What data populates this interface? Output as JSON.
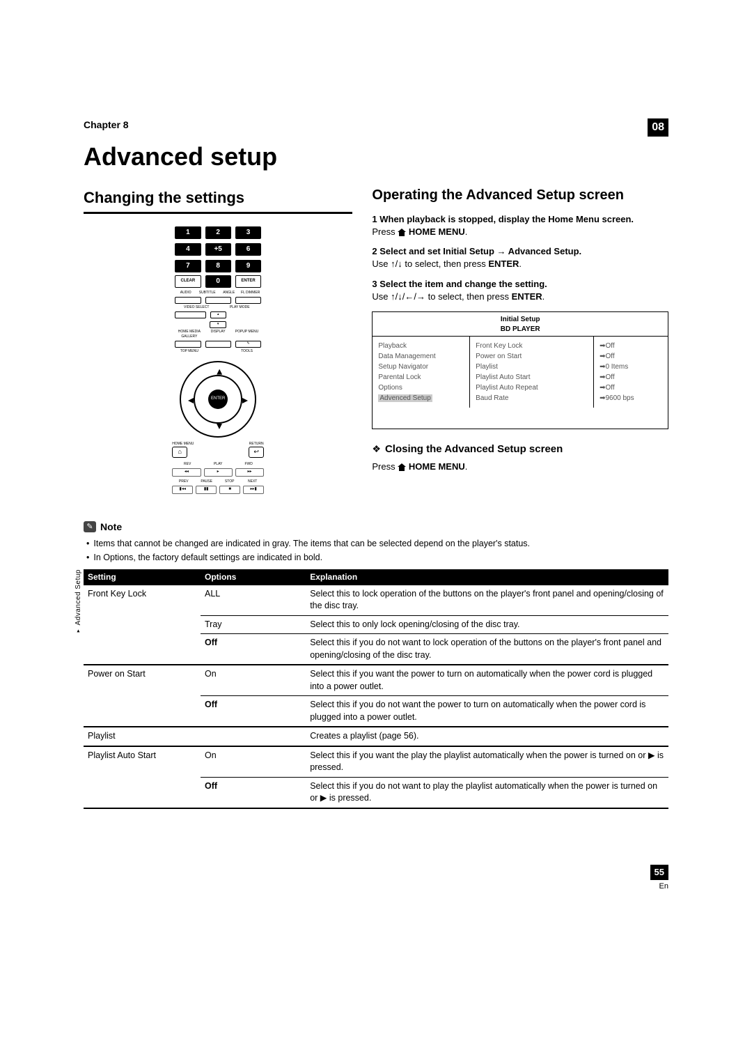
{
  "chapter": {
    "label": "Chapter 8",
    "badge": "08"
  },
  "title": "Advanced setup",
  "left_section_title": "Changing the settings",
  "right_section_title": "Operating the Advanced Setup screen",
  "remote": {
    "numpad": [
      "1",
      "2",
      "3",
      "4",
      "+5",
      "6",
      "7",
      "8",
      "9"
    ],
    "bottom_row": [
      "CLEAR",
      "0",
      "ENTER"
    ],
    "row1_labels": [
      "AUDIO",
      "SUBTITLE",
      "ANGLE",
      "FL DIMMER"
    ],
    "row2_labels": [
      "VIDEO SELECT",
      "PLAY MODE"
    ],
    "row3_labels": [
      "HOME MEDIA GALLERY",
      "DISPLAY",
      "POPUP MENU"
    ],
    "top_menu": "TOP MENU",
    "tools": "TOOLS",
    "enter": "ENTER",
    "home_menu": "HOME MENU",
    "return": "RETURN",
    "transport_labels_top": [
      "REV",
      "PLAY",
      "FWD"
    ],
    "transport_labels_bot": [
      "PREV",
      "PAUSE",
      "STOP",
      "NEXT"
    ],
    "transport_glyphs": [
      "◂◂",
      "◂",
      "▸",
      "▸▸",
      "▮◂◂",
      "▮▮",
      "■",
      "▸▸▮"
    ]
  },
  "steps": [
    {
      "head": "1   When playback is stopped, display the Home Menu screen.",
      "body_prefix": "Press ",
      "body_button": "HOME MENU",
      "body_suffix": "."
    },
    {
      "head": "2   Select and set Initial Setup → Advanced Setup.",
      "body": "Use ↑/↓ to select, then press ENTER."
    },
    {
      "head": "3   Select the item and change the setting.",
      "body": "Use ↑/↓/←/→ to select, then press ENTER."
    }
  ],
  "osd": {
    "title_line1": "Initial Setup",
    "title_line2": "BD PLAYER",
    "col1": [
      "Playback",
      "Data Management",
      "Setup Navigator",
      "Parental Lock",
      "Options",
      "Advenced Setup"
    ],
    "col1_highlight_index": 5,
    "col2": [
      "Front Key Lock",
      "Power on Start",
      "Playlist",
      "Playlist Auto Start",
      "Playlist Auto Repeat",
      "Baud Rate"
    ],
    "col3": [
      "➡Off",
      "➡Off",
      "➡0 Items",
      "➡Off",
      "➡Off",
      "➡9600 bps"
    ]
  },
  "closing_section": {
    "diamond": "❖",
    "title": "Closing the Advanced Setup screen",
    "body_prefix": "Press ",
    "body_button": "HOME MENU",
    "body_suffix": "."
  },
  "note": {
    "icon": "✎",
    "label": "Note",
    "bullets": [
      "Items that cannot be changed are indicated in gray. The items that can be selected depend on the player's status.",
      "In Options, the factory default settings are indicated in bold."
    ]
  },
  "table": {
    "side_label": "Advanced Setup",
    "headers": [
      "Setting",
      "Options",
      "Explanation"
    ],
    "rows": [
      {
        "setting": "Front Key Lock",
        "option": "ALL",
        "option_bold": false,
        "exp": "Select this to lock operation of the buttons on the player's front panel and opening/closing of the disc tray.",
        "thick_border": false,
        "show_setting": true
      },
      {
        "setting": "",
        "option": "Tray",
        "option_bold": false,
        "exp": "Select this to only lock opening/closing of the disc tray.",
        "thick_border": false
      },
      {
        "setting": "",
        "option": "Off",
        "option_bold": true,
        "exp": "Select this if you do not want to lock operation of the buttons on the player's front panel and opening/closing of the disc tray.",
        "thick_border": true
      },
      {
        "setting": "Power on Start",
        "option": "On",
        "option_bold": false,
        "exp": "Select this if you want the power to turn on automatically when the power cord is plugged into a power outlet.",
        "thick_border": false,
        "show_setting": true
      },
      {
        "setting": "",
        "option": "Off",
        "option_bold": true,
        "exp": "Select this if you do not want the power to turn on automatically when the power cord is plugged into a power outlet.",
        "thick_border": true
      },
      {
        "setting": "Playlist",
        "option": "",
        "option_bold": false,
        "exp": "Creates a playlist (page 56).",
        "thick_border": true,
        "show_setting": true
      },
      {
        "setting": "Playlist Auto Start",
        "option": "On",
        "option_bold": false,
        "exp": "Select this if you want the play the playlist automatically when the power is turned on or ▶ is pressed.",
        "thick_border": false,
        "show_setting": true
      },
      {
        "setting": "",
        "option": "Off",
        "option_bold": true,
        "exp": "Select this if you do not want to play the playlist automatically when the power is turned on or ▶ is pressed.",
        "thick_border": true
      }
    ]
  },
  "footer": {
    "page": "55",
    "lang": "En"
  },
  "colors": {
    "black": "#000000",
    "gray_text": "#555555",
    "highlight": "#cccccc",
    "note_bg": "#444444"
  }
}
